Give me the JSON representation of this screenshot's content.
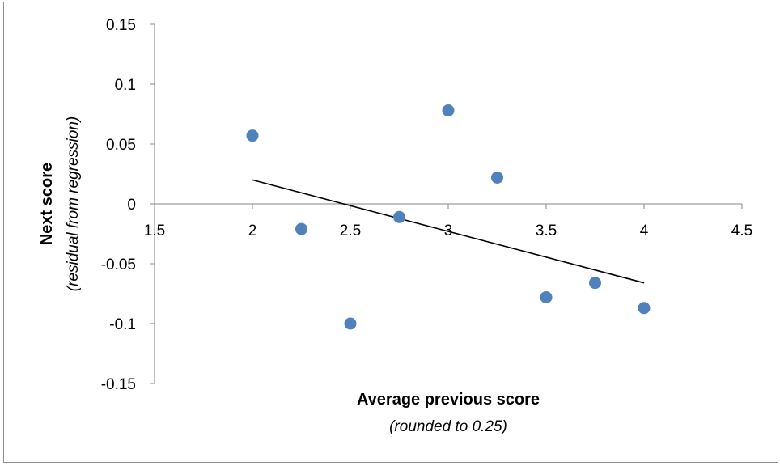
{
  "chart_data": {
    "type": "scatter",
    "xlim": [
      1.5,
      4.5
    ],
    "ylim": [
      -0.15,
      0.15
    ],
    "x_ticks": [
      "1.5",
      "2",
      "2.5",
      "3",
      "3.5",
      "4",
      "4.5"
    ],
    "y_ticks": [
      "0.15",
      "0.1",
      "0.05",
      "0",
      "-0.05",
      "-0.1",
      "-0.15"
    ],
    "xlabel": "Average previous score",
    "xlabel_sub": "(rounded to 0.25)",
    "ylabel": "Next score",
    "ylabel_sub": "(residual from regression)",
    "grid": false,
    "legend": "none",
    "marker_color": "#4f81bd",
    "trendline_color": "#000000",
    "points": [
      {
        "x": 2.0,
        "y": 0.057
      },
      {
        "x": 2.25,
        "y": -0.021
      },
      {
        "x": 2.5,
        "y": -0.1
      },
      {
        "x": 2.75,
        "y": -0.011
      },
      {
        "x": 3.0,
        "y": 0.078
      },
      {
        "x": 3.25,
        "y": 0.022
      },
      {
        "x": 3.5,
        "y": -0.078
      },
      {
        "x": 3.75,
        "y": -0.066
      },
      {
        "x": 4.0,
        "y": -0.087
      }
    ],
    "trendline": {
      "x": [
        2.0,
        4.0
      ],
      "y": [
        0.02,
        -0.066
      ]
    }
  }
}
